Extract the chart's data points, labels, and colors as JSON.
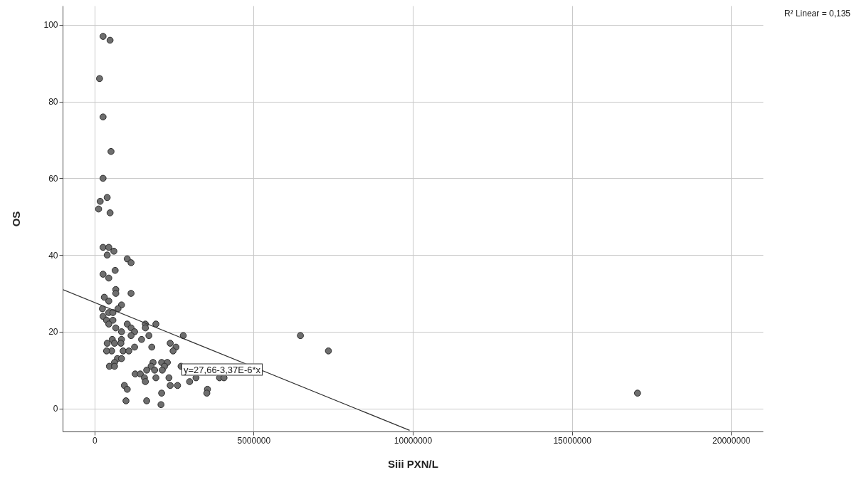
{
  "chart_data": {
    "type": "scatter",
    "xlabel": "Siii  PXN/L",
    "ylabel": "OS",
    "xlim": [
      -1000000,
      21000000
    ],
    "xticks": [
      0,
      5000000,
      10000000,
      15000000,
      20000000
    ],
    "ylim": [
      -6,
      105
    ],
    "yticks": [
      0,
      20,
      40,
      60,
      80,
      100
    ],
    "grid": true,
    "series": [
      {
        "marker": "circle",
        "color": "#6e6e6e",
        "x": [
          270000,
          490000,
          160000,
          270000,
          520000,
          270000,
          400000,
          180000,
          130000,
          490000,
          270000,
          450000,
          610000,
          400000,
          1030000,
          1150000,
          270000,
          650000,
          450000,
          670000,
          670000,
          1150000,
          310000,
          450000,
          850000,
          250000,
          740000,
          450000,
          580000,
          270000,
          380000,
          580000,
          450000,
          1030000,
          1150000,
          1600000,
          1930000,
          670000,
          850000,
          1260000,
          1600000,
          2790000,
          1480000,
          850000,
          560000,
          1150000,
          1710000,
          2380000,
          400000,
          630000,
          830000,
          1260000,
          1800000,
          2560000,
          540000,
          380000,
          900000,
          1080000,
          2470000,
          1840000,
          720000,
          850000,
          630000,
          470000,
          630000,
          2110000,
          2290000,
          1780000,
          2200000,
          1280000,
          1440000,
          1640000,
          1890000,
          1570000,
          1930000,
          2130000,
          2340000,
          1600000,
          940000,
          1030000,
          990000,
          1640000,
          2090000,
          2110000,
          2380000,
          2610000,
          2990000,
          3190000,
          3550000,
          3530000,
          3930000,
          4070000,
          2720000,
          6470000,
          7350000,
          17060000
        ],
        "values": [
          97,
          96,
          86,
          76,
          67,
          60,
          55,
          54,
          52,
          51,
          42,
          42,
          41,
          40,
          39,
          38,
          35,
          36,
          34,
          31,
          30,
          30,
          29,
          28,
          27,
          26,
          26,
          25,
          25,
          24,
          23,
          23,
          22,
          22,
          21,
          22,
          22,
          21,
          20,
          20,
          21,
          19,
          18,
          18,
          18,
          19,
          19,
          17,
          17,
          17,
          17,
          16,
          16,
          16,
          15,
          15,
          15,
          15,
          15,
          12,
          13,
          13,
          12,
          11,
          11,
          12,
          12,
          11,
          11,
          9,
          9,
          10,
          10,
          8,
          8,
          10,
          8,
          7,
          6,
          5,
          2,
          2,
          1,
          4,
          6,
          6,
          7,
          8,
          5,
          4,
          8,
          8,
          11,
          19,
          15,
          4
        ]
      },
      {
        "type": "line",
        "color": "#333333",
        "x": [
          -1000000,
          9900000
        ],
        "values": [
          31,
          -5.7
        ]
      }
    ],
    "annotations": [
      "R² Linear = 0,135",
      "y=27,66-3,37E-6*x"
    ]
  }
}
